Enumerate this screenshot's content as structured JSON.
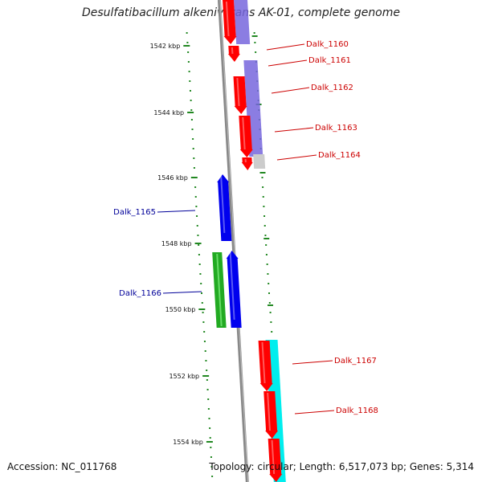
{
  "title": "Desulfatibacillum alkenivorans AK-01, complete genome",
  "footer": {
    "accession": "Accession: NC_011768",
    "summary": "Topology: circular; Length: 6,517,073 bp; Genes: 5,314"
  },
  "colors": {
    "backbone": "#888888",
    "forward_gene": "#ff0000",
    "reverse_gene": "#0000ee",
    "green_gene": "#22aa22",
    "track_purple": "#7766dd",
    "track_cyan": "#00eeee",
    "track_gray": "#cccccc",
    "ticks": "#228822",
    "label_red": "#cc0000",
    "label_blue": "#000099"
  },
  "kbp_labels": [
    "1542 kbp",
    "1544 kbp",
    "1546 kbp",
    "1548 kbp",
    "1550 kbp",
    "1552 kbp",
    "1554 kbp"
  ],
  "gene_labels": [
    {
      "text": "Dalk_1160",
      "strand": "forward"
    },
    {
      "text": "Dalk_1161",
      "strand": "forward"
    },
    {
      "text": "Dalk_1162",
      "strand": "forward"
    },
    {
      "text": "Dalk_1163",
      "strand": "forward"
    },
    {
      "text": "Dalk_1164",
      "strand": "forward"
    },
    {
      "text": "Dalk_1165",
      "strand": "reverse"
    },
    {
      "text": "Dalk_1166",
      "strand": "reverse"
    },
    {
      "text": "Dalk_1167",
      "strand": "forward"
    },
    {
      "text": "Dalk_1168",
      "strand": "forward"
    }
  ]
}
